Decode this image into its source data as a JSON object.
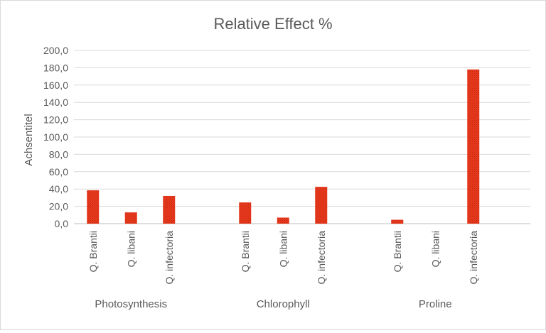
{
  "chart_data": {
    "type": "bar",
    "title": "Relative Effect %",
    "ylabel": "Achsentitel",
    "xlabel": "",
    "ylim": [
      0,
      200
    ],
    "yticks": [
      0,
      20,
      40,
      60,
      80,
      100,
      120,
      140,
      160,
      180,
      200
    ],
    "ytick_labels": [
      "0,0",
      "20,0",
      "40,0",
      "60,0",
      "80,0",
      "100,0",
      "120,0",
      "140,0",
      "160,0",
      "180,0",
      "200,0"
    ],
    "grid": true,
    "legend": "none",
    "groups": [
      {
        "name": "Photosynthesis",
        "categories": [
          "Q. Brantii",
          "Q. libani",
          "Q. infectoria"
        ],
        "values": [
          38.5,
          13.0,
          32.0
        ]
      },
      {
        "name": "Chlorophyll",
        "categories": [
          "Q. Brantii",
          "Q. libani",
          "Q. infectoria"
        ],
        "values": [
          24.5,
          7.0,
          42.5
        ]
      },
      {
        "name": "Proline",
        "categories": [
          "Q. Brantii",
          "Q. libani",
          "Q. infectoria"
        ],
        "values": [
          4.5,
          0,
          178.0
        ]
      }
    ],
    "colors": {
      "bar": "#e8391d",
      "bar_dot": "#c42a10",
      "grid": "#d9d9d9",
      "text": "#595959",
      "title": "#595959"
    }
  }
}
